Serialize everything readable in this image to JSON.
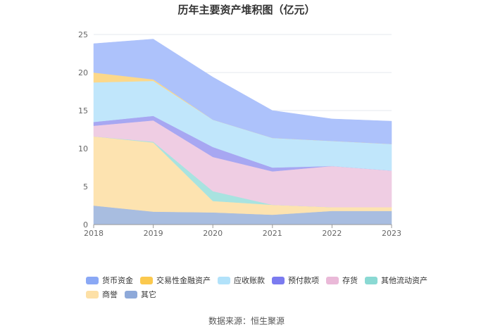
{
  "chart_data": {
    "type": "area",
    "stacked": true,
    "title": "历年主要资产堆积图（亿元）",
    "categories": [
      "2018",
      "2019",
      "2020",
      "2021",
      "2022",
      "2023"
    ],
    "ylim": [
      0,
      25
    ],
    "yticks": [
      "0",
      "5",
      "10",
      "15",
      "20",
      "25"
    ],
    "series": [
      {
        "name": "其它",
        "color": "#a8bde0",
        "values": [
          2.5,
          1.7,
          1.6,
          1.3,
          1.8,
          1.8
        ]
      },
      {
        "name": "商誉",
        "color": "#fde3b0",
        "values": [
          9.1,
          9.1,
          1.5,
          1.3,
          0.5,
          0.5
        ]
      },
      {
        "name": "其他流动资产",
        "color": "#a8e3e0",
        "values": [
          0.0,
          0.1,
          1.3,
          0.0,
          0.0,
          0.0
        ]
      },
      {
        "name": "存货",
        "color": "#efcde3",
        "values": [
          1.4,
          2.8,
          4.5,
          4.4,
          5.4,
          4.8
        ]
      },
      {
        "name": "预付款项",
        "color": "#a7a7f2",
        "values": [
          0.5,
          0.6,
          1.3,
          0.5,
          0.0,
          0.0
        ]
      },
      {
        "name": "应收账款",
        "color": "#c0e6fb",
        "values": [
          5.2,
          4.6,
          3.6,
          3.9,
          3.3,
          3.5
        ]
      },
      {
        "name": "交易性金融资产",
        "color": "#fcd88a",
        "values": [
          1.3,
          0.2,
          0.0,
          0.0,
          0.0,
          0.0
        ]
      },
      {
        "name": "货币资金",
        "color": "#adc2fb",
        "values": [
          3.8,
          5.3,
          5.6,
          3.6,
          2.9,
          3.0
        ]
      }
    ],
    "legend": [
      {
        "name": "货币资金",
        "color": "#8aa8f5"
      },
      {
        "name": "交易性金融资产",
        "color": "#fbc94e"
      },
      {
        "name": "应收账款",
        "color": "#b2e2fa"
      },
      {
        "name": "预付款项",
        "color": "#7b7bf0"
      },
      {
        "name": "存货",
        "color": "#eab9d8"
      },
      {
        "name": "其他流动资产",
        "color": "#8ad9d3"
      },
      {
        "name": "商誉",
        "color": "#fde0a6"
      },
      {
        "name": "其它",
        "color": "#8ea9d9"
      }
    ]
  },
  "source_text": "数据来源：恒生聚源"
}
